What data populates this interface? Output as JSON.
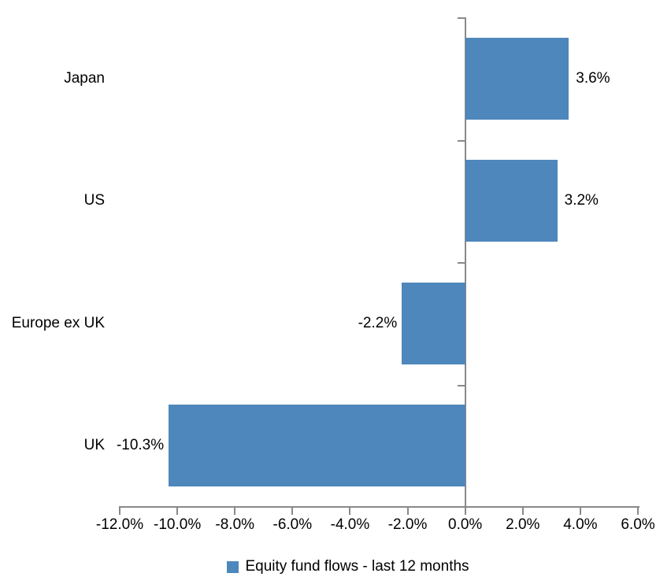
{
  "chart_data": {
    "type": "bar",
    "orientation": "horizontal",
    "title": "",
    "categories": [
      "Japan",
      "US",
      "Europe ex UK",
      "UK"
    ],
    "series": [
      {
        "name": "Equity fund flows - last 12 months",
        "values": [
          3.6,
          3.2,
          -2.2,
          -10.3
        ],
        "value_labels": [
          "3.6%",
          "3.2%",
          "-2.2%",
          "-10.3%"
        ]
      }
    ],
    "xlim": [
      -12,
      6
    ],
    "x_tick_step": 2,
    "x_tick_labels": [
      "-12.0%",
      "-10.0%",
      "-8.0%",
      "-6.0%",
      "-4.0%",
      "-2.0%",
      "0.0%",
      "2.0%",
      "4.0%",
      "6.0%"
    ],
    "grid": false,
    "legend_position": "bottom",
    "legend": [
      {
        "label": "Equity fund flows - last 12 months",
        "color": "#4E87BC"
      }
    ],
    "colors": {
      "bar": "#4E87BC",
      "axis": "#898989",
      "text": "#000000",
      "background": "#FFFFFF"
    }
  }
}
